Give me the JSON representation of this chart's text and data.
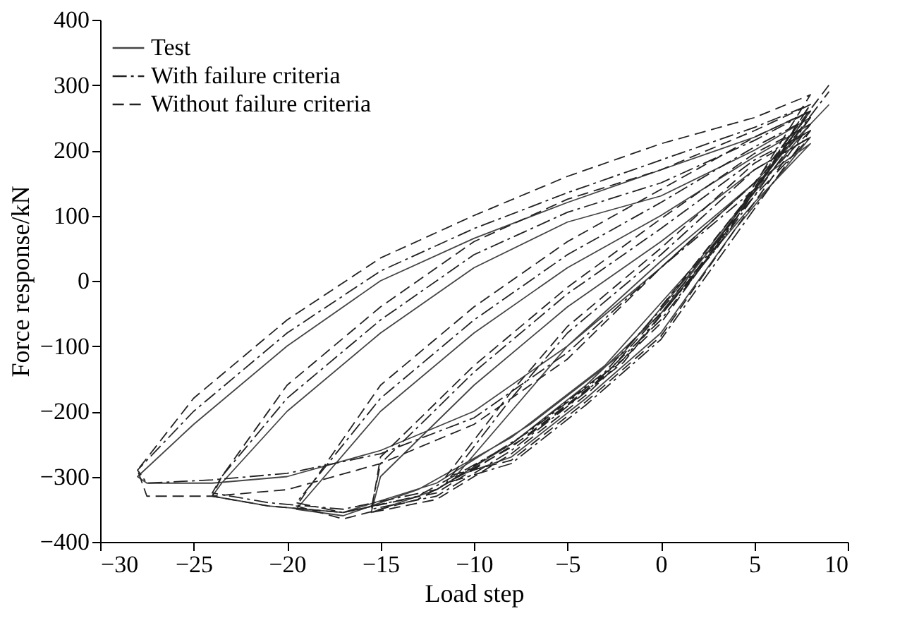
{
  "chart_data": {
    "type": "line",
    "xlabel": "Load step",
    "ylabel": "Force response/kN",
    "xlim": [
      -30,
      10
    ],
    "ylim": [
      -400,
      400
    ],
    "xticks": [
      -30,
      -25,
      -20,
      -15,
      -10,
      -5,
      0,
      5,
      10
    ],
    "yticks": [
      -400,
      -300,
      -200,
      -100,
      0,
      100,
      200,
      300,
      400
    ],
    "grid": false,
    "legend": "top left",
    "marker": "none",
    "series": [
      {
        "name": "Test",
        "color": "#444444",
        "line_style": "solid",
        "x": [
          0,
          5,
          8,
          5,
          0,
          -5,
          -8,
          -11,
          -8,
          -4,
          0,
          4,
          8,
          5,
          0,
          -5,
          -10,
          -15,
          -15.5,
          -12,
          -8,
          -4,
          0,
          4,
          8,
          5,
          0,
          -5,
          -10,
          -15,
          -19.5,
          -17,
          -13,
          -8,
          -3,
          2,
          8,
          5,
          0,
          -5,
          -10,
          -15,
          -20,
          -23.5,
          -24,
          -21,
          -17,
          -12,
          -7,
          -2,
          3,
          8,
          5,
          0,
          -5,
          -10,
          -15,
          -20,
          -25,
          -28,
          -27.5,
          -24,
          -20,
          -15,
          -10,
          -5,
          0,
          5,
          9
        ],
        "values": [
          -50,
          120,
          210,
          150,
          20,
          -100,
          -200,
          -300,
          -270,
          -180,
          -80,
          80,
          220,
          170,
          60,
          -40,
          -160,
          -300,
          -355,
          -320,
          -250,
          -160,
          -50,
          100,
          240,
          190,
          100,
          20,
          -80,
          -200,
          -350,
          -360,
          -320,
          -240,
          -130,
          30,
          250,
          200,
          130,
          90,
          20,
          -80,
          -200,
          -310,
          -330,
          -345,
          -355,
          -310,
          -220,
          -110,
          60,
          260,
          220,
          170,
          120,
          65,
          0,
          -100,
          -220,
          -300,
          -310,
          -310,
          -300,
          -260,
          -200,
          -100,
          30,
          150,
          270
        ]
      },
      {
        "name": "With failure criteria",
        "color": "#222222",
        "line_style": "dashdot",
        "x": [
          0,
          5,
          8,
          5,
          0,
          -5,
          -8,
          -11.5,
          -8,
          -4,
          0,
          4,
          8,
          5,
          0,
          -5,
          -10,
          -15,
          -15.5,
          -12,
          -8,
          -4,
          0,
          4,
          8,
          5,
          0,
          -5,
          -10,
          -15,
          -19.5,
          -17,
          -13,
          -8,
          -3,
          2,
          8,
          5,
          0,
          -5,
          -10,
          -15,
          -20,
          -23.5,
          -24,
          -21,
          -17,
          -12,
          -7,
          -2,
          3,
          8,
          5,
          0,
          -5,
          -10,
          -15,
          -20,
          -25,
          -28,
          -27.5,
          -24,
          -20,
          -15,
          -10,
          -5,
          0,
          5,
          9
        ],
        "values": [
          -40,
          130,
          220,
          170,
          40,
          -80,
          -180,
          -310,
          -280,
          -190,
          -90,
          70,
          230,
          185,
          80,
          -20,
          -140,
          -280,
          -350,
          -330,
          -260,
          -170,
          -60,
          90,
          250,
          205,
          120,
          40,
          -60,
          -180,
          -340,
          -355,
          -330,
          -250,
          -140,
          20,
          260,
          215,
          150,
          105,
          40,
          -60,
          -180,
          -300,
          -325,
          -340,
          -350,
          -320,
          -230,
          -120,
          50,
          270,
          235,
          185,
          135,
          80,
          15,
          -80,
          -200,
          -290,
          -310,
          -305,
          -295,
          -265,
          -210,
          -110,
          20,
          140,
          290
        ]
      },
      {
        "name": "Without failure criteria",
        "color": "#222222",
        "line_style": "dashed",
        "x": [
          0,
          5,
          8,
          5,
          0,
          -5,
          -8,
          -11.5,
          -8,
          -4,
          0,
          4,
          8,
          5,
          0,
          -5,
          -10,
          -15,
          -15.5,
          -12,
          -8,
          -4,
          0,
          4,
          8,
          5,
          0,
          -5,
          -10,
          -15,
          -19.5,
          -17,
          -13,
          -8,
          -3,
          2,
          8,
          5,
          0,
          -5,
          -10,
          -15,
          -20,
          -23.5,
          -24,
          -21,
          -17,
          -12,
          -7,
          -2,
          3,
          8,
          5,
          0,
          -5,
          -10,
          -15,
          -20,
          -25,
          -28,
          -27.5,
          -24,
          -20,
          -15,
          -10,
          -5,
          0,
          5,
          9
        ],
        "values": [
          -40,
          140,
          230,
          180,
          50,
          -70,
          -170,
          -300,
          -275,
          -185,
          -85,
          80,
          240,
          195,
          95,
          -10,
          -130,
          -270,
          -355,
          -335,
          -265,
          -175,
          -65,
          95,
          260,
          220,
          140,
          60,
          -40,
          -160,
          -345,
          -365,
          -335,
          -255,
          -145,
          15,
          270,
          230,
          170,
          125,
          60,
          -40,
          -160,
          -300,
          -330,
          -345,
          -355,
          -325,
          -235,
          -125,
          55,
          285,
          250,
          210,
          160,
          100,
          35,
          -60,
          -180,
          -290,
          -330,
          -330,
          -320,
          -280,
          -220,
          -120,
          20,
          150,
          300
        ]
      }
    ]
  }
}
